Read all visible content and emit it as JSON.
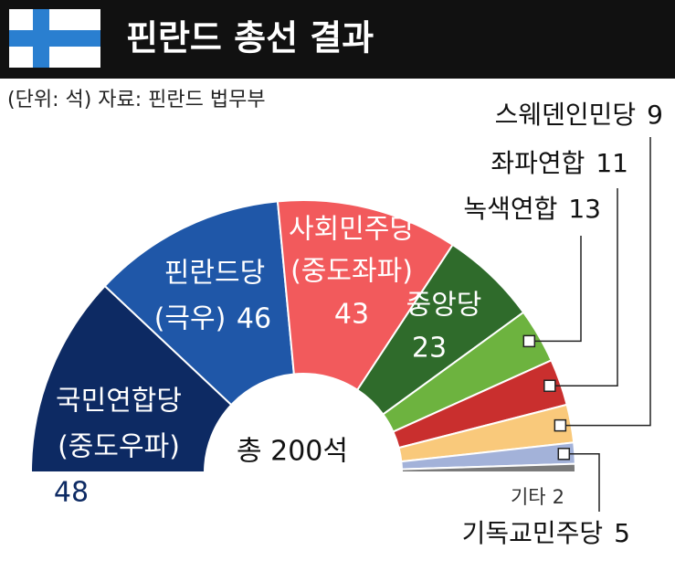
{
  "title": "핀란드 총선 결과",
  "chart_data": {
    "type": "semidonut",
    "subtitle": "(단위: 석)  자료: 핀란드 법무부",
    "center_label": "총 200석",
    "categories": [
      "국민연합당",
      "핀란드당",
      "사회민주당",
      "중앙당",
      "녹색연합",
      "좌파연합",
      "스웨덴인민당",
      "기독교민주당",
      "기타"
    ],
    "category_notes": [
      "(중도우파)",
      "(극우)",
      "(중도좌파)",
      null,
      null,
      null,
      null,
      null,
      null
    ],
    "values": [
      48,
      46,
      43,
      23,
      13,
      11,
      9,
      5,
      2
    ],
    "colors": [
      "#0d2a63",
      "#1f57a8",
      "#f25a5c",
      "#2f6b2b",
      "#6db33f",
      "#c92f2e",
      "#f9c97b",
      "#a3b2d9",
      "#7a7a7a"
    ]
  }
}
